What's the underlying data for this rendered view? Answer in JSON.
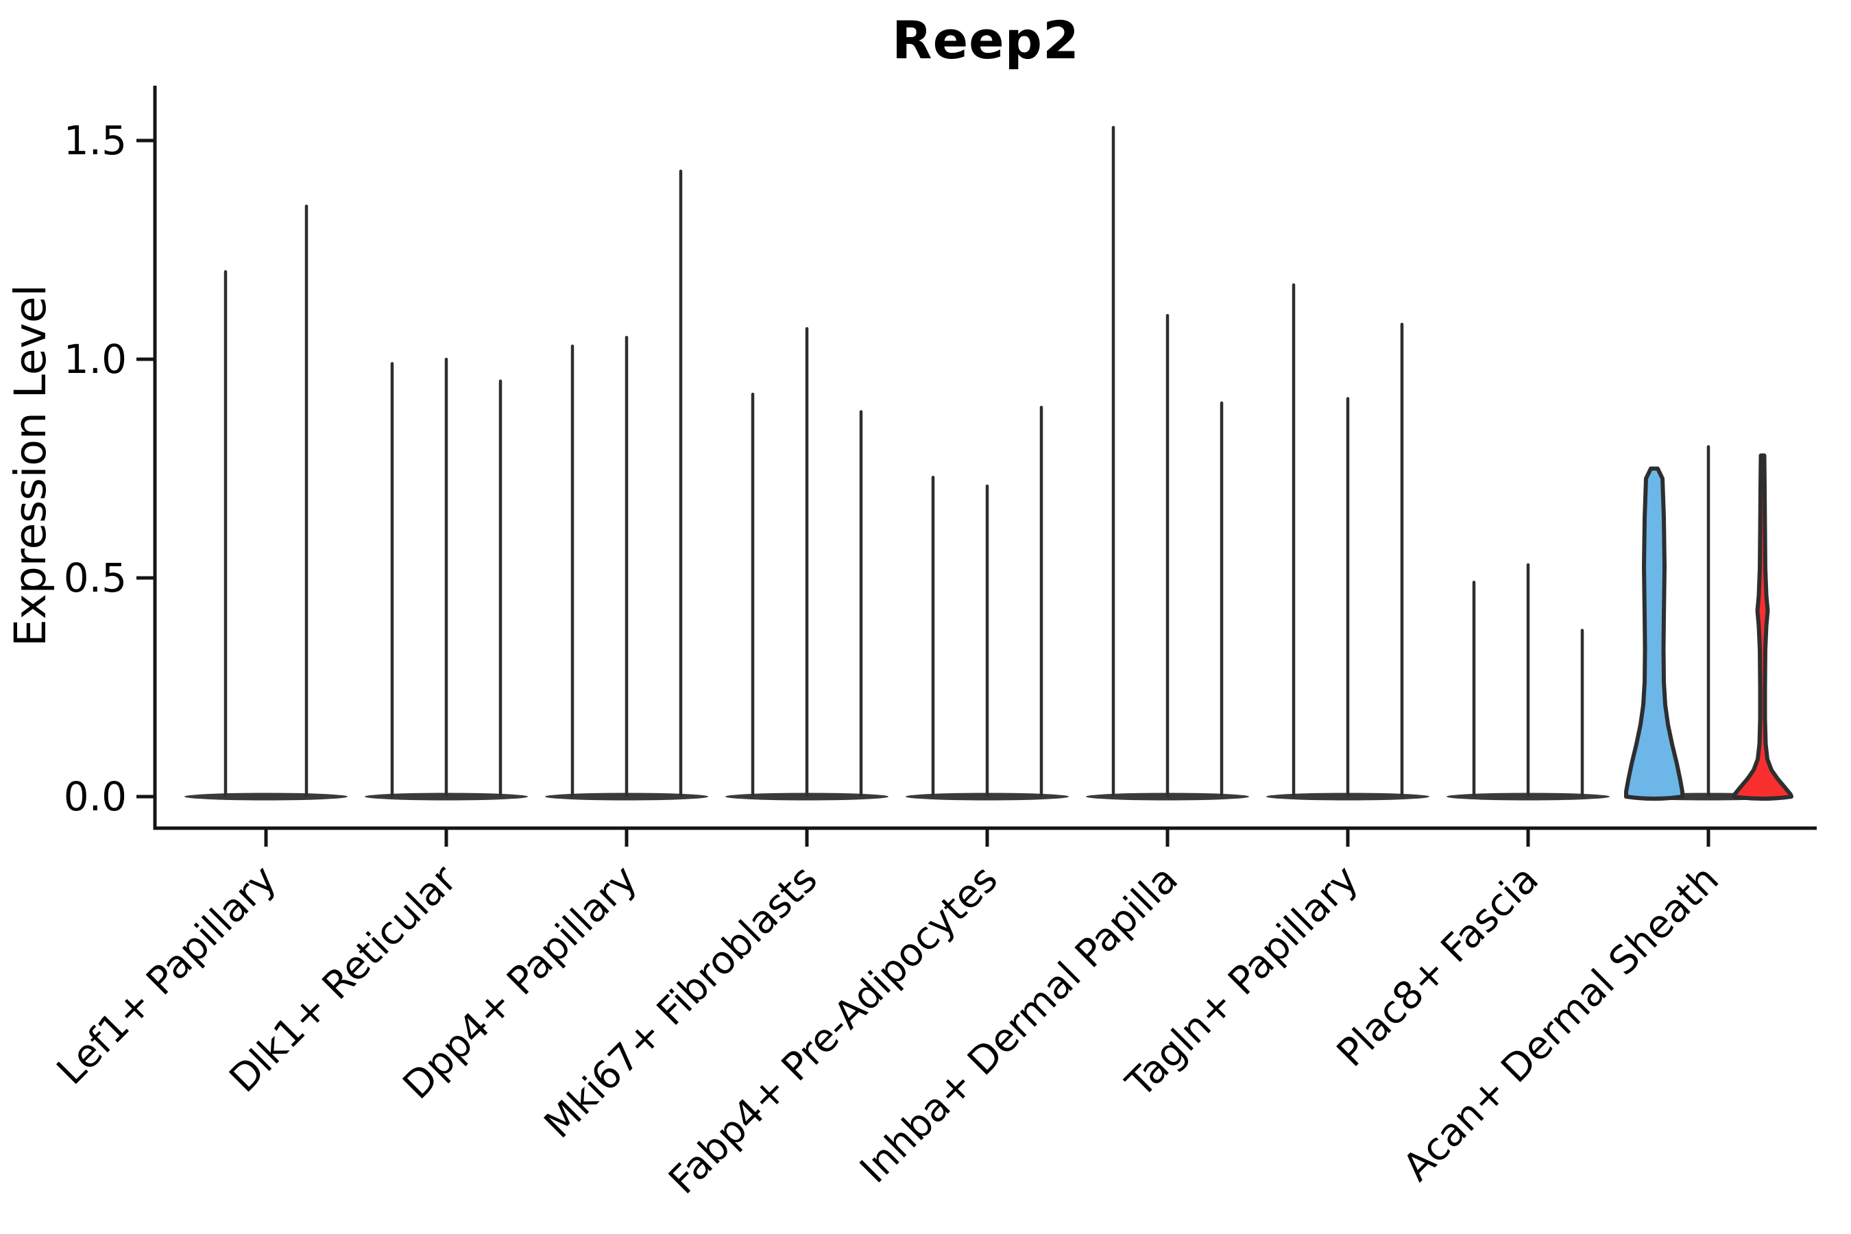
{
  "chart_data": {
    "type": "violin",
    "title": "Reep2",
    "xlabel": "",
    "ylabel": "Expression Level",
    "ylim": [
      -0.072,
      1.63
    ],
    "yticks": [
      0.0,
      0.5,
      1.0,
      1.5
    ],
    "ytick_labels": [
      "0.0",
      "0.5",
      "1.0",
      "1.5"
    ],
    "grid": false,
    "legend": "none",
    "categories": [
      "Lef1+ Papillary",
      "Dlk1+ Reticular",
      "Dpp4+ Papillary",
      "Mki67+ Fibroblasts",
      "Fabp4+ Pre-Adipocytes",
      "Inhba+ Dermal Papilla",
      "Tagln+ Papillary",
      "Plac8+ Fascia",
      "Acan+ Dermal Sheath"
    ],
    "groups": [
      {
        "category": "Lef1+ Papillary",
        "violins": [
          {
            "max": 1.2,
            "style": "collapsed"
          },
          {
            "max": 1.35,
            "style": "collapsed"
          }
        ]
      },
      {
        "category": "Dlk1+ Reticular",
        "violins": [
          {
            "max": 0.99,
            "style": "collapsed"
          },
          {
            "max": 1.0,
            "style": "collapsed"
          },
          {
            "max": 0.95,
            "style": "collapsed"
          }
        ]
      },
      {
        "category": "Dpp4+ Papillary",
        "violins": [
          {
            "max": 1.03,
            "style": "collapsed"
          },
          {
            "max": 1.05,
            "style": "collapsed"
          },
          {
            "max": 1.43,
            "style": "collapsed"
          }
        ]
      },
      {
        "category": "Mki67+ Fibroblasts",
        "violins": [
          {
            "max": 0.92,
            "style": "collapsed"
          },
          {
            "max": 1.07,
            "style": "collapsed"
          },
          {
            "max": 0.88,
            "style": "collapsed"
          }
        ]
      },
      {
        "category": "Fabp4+ Pre-Adipocytes",
        "violins": [
          {
            "max": 0.73,
            "style": "collapsed"
          },
          {
            "max": 0.71,
            "style": "collapsed"
          },
          {
            "max": 0.89,
            "style": "collapsed"
          }
        ]
      },
      {
        "category": "Inhba+ Dermal Papilla",
        "violins": [
          {
            "max": 1.53,
            "style": "collapsed"
          },
          {
            "max": 1.1,
            "style": "collapsed"
          },
          {
            "max": 0.9,
            "style": "collapsed"
          }
        ]
      },
      {
        "category": "Tagln+ Papillary",
        "violins": [
          {
            "max": 1.17,
            "style": "collapsed"
          },
          {
            "max": 0.91,
            "style": "collapsed"
          },
          {
            "max": 1.08,
            "style": "collapsed"
          }
        ]
      },
      {
        "category": "Plac8+ Fascia",
        "violins": [
          {
            "max": 0.49,
            "style": "collapsed"
          },
          {
            "max": 0.53,
            "style": "collapsed"
          },
          {
            "max": 0.38,
            "style": "collapsed"
          }
        ]
      },
      {
        "category": "Acan+ Dermal Sheath",
        "violins": [
          {
            "max": 0.75,
            "style": "body",
            "fill": "#6DB6E8"
          },
          {
            "max": 0.8,
            "style": "collapsed"
          },
          {
            "max": 0.78,
            "style": "body-thin",
            "fill": "#F92F2F"
          }
        ]
      }
    ],
    "colors": {
      "violin_outline": "#2E2E2E",
      "base_band": "#3A3A3A",
      "axis": "#141414",
      "blue_fill": "#6DB6E8",
      "red_fill": "#F92F2F",
      "background": "#FFFFFF",
      "text": "#000000"
    }
  }
}
